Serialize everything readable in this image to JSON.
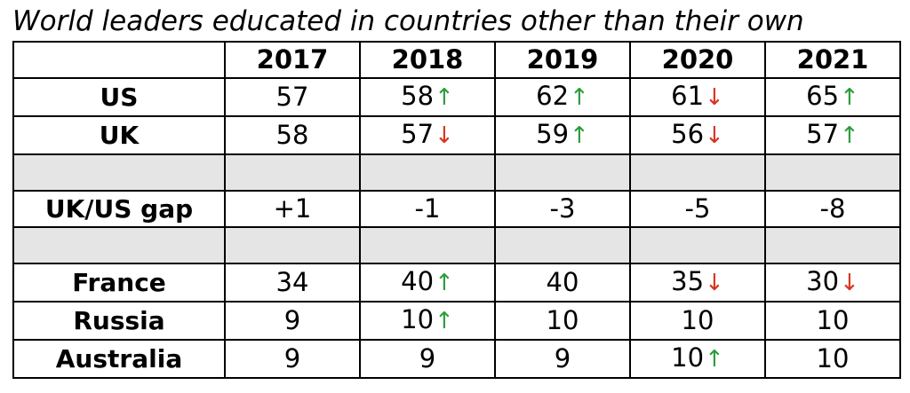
{
  "chart_data": {
    "type": "table",
    "title": "World leaders educated in countries other than their own",
    "columns": [
      "",
      "2017",
      "2018",
      "2019",
      "2020",
      "2021"
    ],
    "rows": [
      {
        "label": "US",
        "cells": [
          {
            "v": "57",
            "t": ""
          },
          {
            "v": "58",
            "t": "up"
          },
          {
            "v": "62",
            "t": "up"
          },
          {
            "v": "61",
            "t": "down"
          },
          {
            "v": "65",
            "t": "up"
          }
        ]
      },
      {
        "label": "UK",
        "cells": [
          {
            "v": "58",
            "t": ""
          },
          {
            "v": "57",
            "t": "down"
          },
          {
            "v": "59",
            "t": "up"
          },
          {
            "v": "56",
            "t": "down"
          },
          {
            "v": "57",
            "t": "up"
          }
        ]
      },
      {
        "spacer": true
      },
      {
        "label": "UK/US gap",
        "cells": [
          {
            "v": "+1",
            "t": ""
          },
          {
            "v": "-1",
            "t": ""
          },
          {
            "v": "-3",
            "t": ""
          },
          {
            "v": "-5",
            "t": ""
          },
          {
            "v": "-8",
            "t": ""
          }
        ]
      },
      {
        "spacer": true
      },
      {
        "label": "France",
        "cells": [
          {
            "v": "34",
            "t": ""
          },
          {
            "v": "40",
            "t": "up"
          },
          {
            "v": "40",
            "t": ""
          },
          {
            "v": "35",
            "t": "down"
          },
          {
            "v": "30",
            "t": "down"
          }
        ]
      },
      {
        "label": "Russia",
        "cells": [
          {
            "v": "9",
            "t": ""
          },
          {
            "v": "10",
            "t": "up"
          },
          {
            "v": "10",
            "t": ""
          },
          {
            "v": "10",
            "t": ""
          },
          {
            "v": "10",
            "t": ""
          }
        ]
      },
      {
        "label": "Australia",
        "cells": [
          {
            "v": "9",
            "t": ""
          },
          {
            "v": "9",
            "t": ""
          },
          {
            "v": "9",
            "t": ""
          },
          {
            "v": "10",
            "t": "up"
          },
          {
            "v": "10",
            "t": ""
          }
        ]
      }
    ],
    "colors": {
      "up": "#2a9d3c",
      "down": "#d9341f",
      "spacer": "#e5e5e5"
    }
  }
}
